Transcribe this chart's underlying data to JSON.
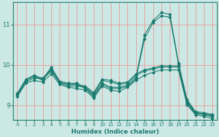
{
  "xlabel": "Humidex (Indice chaleur)",
  "xlim": [
    -0.5,
    23.5
  ],
  "ylim": [
    8.65,
    11.55
  ],
  "yticks": [
    9,
    10,
    11
  ],
  "xticks": [
    0,
    1,
    2,
    3,
    4,
    5,
    6,
    7,
    8,
    9,
    10,
    11,
    12,
    13,
    14,
    15,
    16,
    17,
    18,
    19,
    20,
    21,
    22,
    23
  ],
  "bg_color": "#cce8e4",
  "line_color": "#1a7a6e",
  "grid_color": "#e8a0a0",
  "lines": [
    {
      "x": [
        0,
        1,
        2,
        3,
        4,
        5,
        6,
        7,
        8,
        9,
        10,
        11,
        12,
        13,
        14,
        15,
        16,
        17,
        18,
        19,
        20,
        21,
        22,
        23
      ],
      "y": [
        9.3,
        9.65,
        9.75,
        9.65,
        9.95,
        9.6,
        9.55,
        9.55,
        9.45,
        9.25,
        9.55,
        9.45,
        9.45,
        9.5,
        9.7,
        10.75,
        11.1,
        11.3,
        11.25,
        10.05,
        9.15,
        8.85,
        8.82,
        8.78
      ]
    },
    {
      "x": [
        0,
        1,
        2,
        3,
        4,
        5,
        6,
        7,
        8,
        9,
        10,
        11,
        12,
        13,
        14,
        15,
        16,
        17,
        18,
        19,
        20,
        21,
        22,
        23
      ],
      "y": [
        9.28,
        9.62,
        9.72,
        9.62,
        9.9,
        9.57,
        9.52,
        9.52,
        9.42,
        9.22,
        9.52,
        9.42,
        9.42,
        9.47,
        9.67,
        10.65,
        11.05,
        11.22,
        11.18,
        10.02,
        9.12,
        8.82,
        8.79,
        8.75
      ]
    },
    {
      "x": [
        0,
        1,
        2,
        3,
        4,
        5,
        6,
        7,
        8,
        9,
        10,
        11,
        12,
        13,
        14,
        15,
        16,
        17,
        18,
        19,
        20,
        21,
        22,
        23
      ],
      "y": [
        9.28,
        9.62,
        9.72,
        9.68,
        9.88,
        9.57,
        9.52,
        9.52,
        9.48,
        9.32,
        9.65,
        9.62,
        9.55,
        9.58,
        9.78,
        9.88,
        9.93,
        9.98,
        9.98,
        9.98,
        9.08,
        8.82,
        8.79,
        8.75
      ]
    },
    {
      "x": [
        0,
        1,
        2,
        3,
        4,
        5,
        6,
        7,
        8,
        9,
        10,
        11,
        12,
        13,
        14,
        15,
        16,
        17,
        18,
        19,
        20,
        21,
        22,
        23
      ],
      "y": [
        9.25,
        9.58,
        9.68,
        9.65,
        9.85,
        9.55,
        9.48,
        9.48,
        9.45,
        9.28,
        9.62,
        9.58,
        9.52,
        9.55,
        9.75,
        9.85,
        9.9,
        9.95,
        9.95,
        9.95,
        9.05,
        8.8,
        8.77,
        8.72
      ]
    },
    {
      "x": [
        0,
        1,
        2,
        3,
        4,
        5,
        6,
        7,
        8,
        9,
        10,
        11,
        12,
        13,
        14,
        15,
        16,
        17,
        18,
        19,
        20,
        21,
        22,
        23
      ],
      "y": [
        9.22,
        9.55,
        9.62,
        9.58,
        9.78,
        9.52,
        9.45,
        9.42,
        9.38,
        9.18,
        9.48,
        9.38,
        9.35,
        9.45,
        9.62,
        9.75,
        9.82,
        9.88,
        9.88,
        9.88,
        9.02,
        8.77,
        8.73,
        8.68
      ]
    }
  ]
}
